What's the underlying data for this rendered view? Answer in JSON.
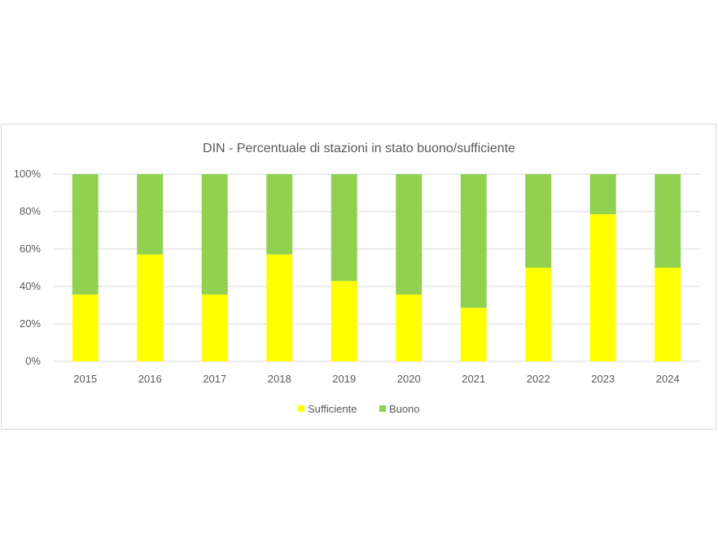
{
  "chart_data": {
    "type": "bar",
    "stacked": true,
    "title": "DIN - Percentuale di stazioni in stato buono/sufficiente",
    "categories": [
      "2015",
      "2016",
      "2017",
      "2018",
      "2019",
      "2020",
      "2021",
      "2022",
      "2023",
      "2024"
    ],
    "series": [
      {
        "name": "Sufficiente",
        "color": "#FFFF00",
        "values": [
          35.7,
          57.1,
          35.7,
          57.1,
          42.9,
          35.7,
          28.6,
          50.0,
          78.6,
          50.0
        ]
      },
      {
        "name": "Buono",
        "color": "#92D050",
        "values": [
          64.3,
          42.9,
          64.3,
          42.9,
          57.1,
          64.3,
          71.4,
          50.0,
          21.4,
          50.0
        ]
      }
    ],
    "yticks": [
      "0%",
      "20%",
      "40%",
      "60%",
      "80%",
      "100%"
    ],
    "ylim": [
      0,
      100
    ],
    "grid": true,
    "legend": "bottom"
  }
}
